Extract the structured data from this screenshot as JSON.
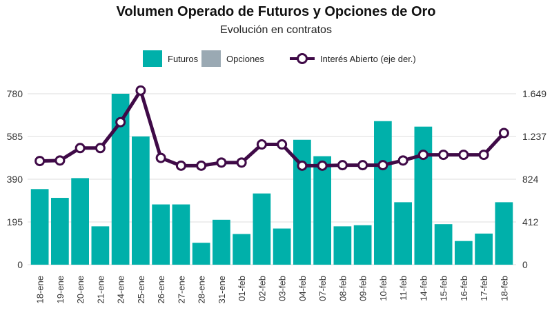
{
  "chart_data": {
    "type": "bar",
    "title": "Volumen Operado de Futuros y Opciones de Oro",
    "subtitle": "Evolución en contratos",
    "categories": [
      "18-ene",
      "19-ene",
      "20-ene",
      "21-ene",
      "24-ene",
      "25-ene",
      "26-ene",
      "27-ene",
      "28-ene",
      "31-ene",
      "01-feb",
      "02-feb",
      "03-feb",
      "04-feb",
      "07-feb",
      "08-feb",
      "09-feb",
      "10-feb",
      "11-feb",
      "14-feb",
      "15-feb",
      "16-feb",
      "17-feb",
      "18-feb"
    ],
    "series": [
      {
        "name": "Futuros",
        "type": "bar",
        "axis": "left",
        "color": "#00b0aa",
        "values": [
          345,
          305,
          395,
          175,
          780,
          585,
          275,
          275,
          100,
          205,
          140,
          325,
          165,
          570,
          495,
          175,
          180,
          655,
          285,
          630,
          185,
          108,
          142,
          285
        ]
      },
      {
        "name": "Opciones",
        "type": "bar",
        "axis": "left",
        "color": "#9aa9b3",
        "values": [
          0,
          0,
          0,
          0,
          0,
          0,
          0,
          0,
          0,
          0,
          0,
          0,
          0,
          0,
          0,
          0,
          0,
          0,
          0,
          0,
          0,
          0,
          0,
          0
        ]
      },
      {
        "name": "Interés Abierto (eje der.)",
        "type": "line",
        "axis": "right",
        "color": "#3f0a47",
        "values": [
          1000,
          1005,
          1125,
          1125,
          1375,
          1680,
          1030,
          955,
          955,
          985,
          985,
          1160,
          1160,
          955,
          955,
          960,
          960,
          960,
          1005,
          1060,
          1060,
          1060,
          1060,
          1270
        ]
      }
    ],
    "y_left": {
      "ticks": [
        "0",
        "195",
        "390",
        "585",
        "780"
      ],
      "tick_values": [
        0,
        195,
        390,
        585,
        780
      ],
      "ylim": [
        0,
        780
      ]
    },
    "y_right": {
      "ticks": [
        "0",
        "412",
        "824",
        "1.237",
        "1.649"
      ],
      "tick_values": [
        0,
        412,
        824,
        1237,
        1649
      ],
      "ylim": [
        0,
        1649
      ]
    },
    "grid": true,
    "legend_position": "top-center"
  }
}
